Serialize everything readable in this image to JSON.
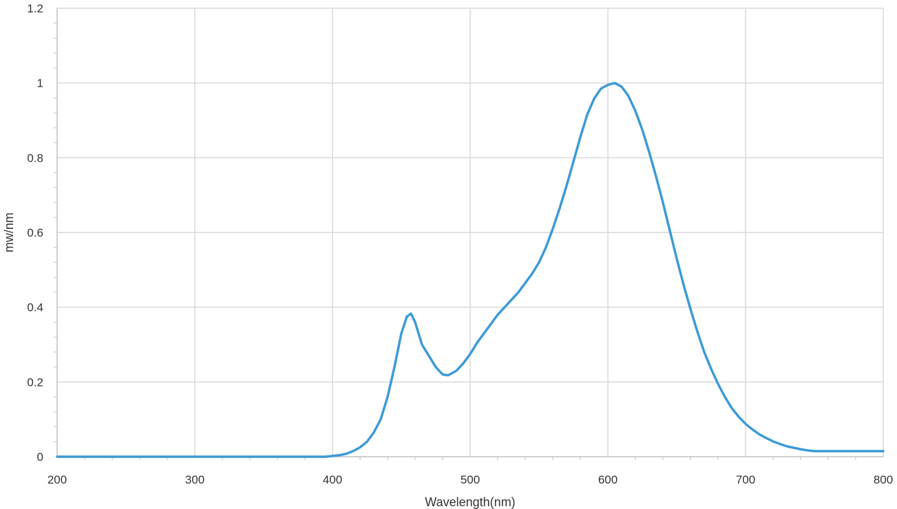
{
  "chart_data": {
    "type": "line",
    "title": "",
    "xlabel": "Wavelength(nm)",
    "ylabel": "mw/nm",
    "xlim": [
      200,
      800
    ],
    "ylim": [
      0,
      1.2
    ],
    "x_ticks": [
      200,
      300,
      400,
      500,
      600,
      700,
      800
    ],
    "x_tick_labels": [
      "200",
      "300",
      "400",
      "500",
      "600",
      "700",
      "800"
    ],
    "y_ticks": [
      0,
      0.2,
      0.4,
      0.6,
      0.8,
      1.0,
      1.2
    ],
    "y_tick_labels": [
      "0",
      "0.2",
      "0.4",
      "0.6",
      "0.8",
      "1",
      "1.2"
    ],
    "grid": true,
    "legend": "none",
    "series": [
      {
        "color": "#3d9ad6",
        "points": [
          [
            200,
            0
          ],
          [
            300,
            0
          ],
          [
            380,
            0
          ],
          [
            395,
            0
          ],
          [
            400,
            0.002
          ],
          [
            405,
            0.004
          ],
          [
            410,
            0.008
          ],
          [
            415,
            0.015
          ],
          [
            420,
            0.025
          ],
          [
            425,
            0.04
          ],
          [
            430,
            0.065
          ],
          [
            435,
            0.1
          ],
          [
            440,
            0.16
          ],
          [
            445,
            0.24
          ],
          [
            450,
            0.33
          ],
          [
            454,
            0.375
          ],
          [
            457,
            0.383
          ],
          [
            460,
            0.36
          ],
          [
            465,
            0.3
          ],
          [
            470,
            0.27
          ],
          [
            475,
            0.24
          ],
          [
            480,
            0.22
          ],
          [
            484,
            0.218
          ],
          [
            490,
            0.23
          ],
          [
            495,
            0.25
          ],
          [
            500,
            0.275
          ],
          [
            505,
            0.305
          ],
          [
            510,
            0.33
          ],
          [
            515,
            0.355
          ],
          [
            520,
            0.38
          ],
          [
            525,
            0.4
          ],
          [
            530,
            0.42
          ],
          [
            535,
            0.44
          ],
          [
            540,
            0.465
          ],
          [
            545,
            0.49
          ],
          [
            550,
            0.52
          ],
          [
            555,
            0.56
          ],
          [
            560,
            0.61
          ],
          [
            565,
            0.665
          ],
          [
            570,
            0.725
          ],
          [
            575,
            0.79
          ],
          [
            580,
            0.855
          ],
          [
            585,
            0.915
          ],
          [
            590,
            0.958
          ],
          [
            595,
            0.985
          ],
          [
            600,
            0.995
          ],
          [
            605,
            1.0
          ],
          [
            610,
            0.99
          ],
          [
            615,
            0.965
          ],
          [
            620,
            0.925
          ],
          [
            625,
            0.875
          ],
          [
            630,
            0.815
          ],
          [
            635,
            0.75
          ],
          [
            640,
            0.68
          ],
          [
            645,
            0.605
          ],
          [
            650,
            0.53
          ],
          [
            655,
            0.46
          ],
          [
            660,
            0.395
          ],
          [
            665,
            0.335
          ],
          [
            670,
            0.28
          ],
          [
            675,
            0.235
          ],
          [
            680,
            0.195
          ],
          [
            685,
            0.16
          ],
          [
            690,
            0.13
          ],
          [
            695,
            0.107
          ],
          [
            700,
            0.088
          ],
          [
            705,
            0.073
          ],
          [
            710,
            0.06
          ],
          [
            715,
            0.05
          ],
          [
            720,
            0.041
          ],
          [
            725,
            0.034
          ],
          [
            730,
            0.028
          ],
          [
            735,
            0.024
          ],
          [
            740,
            0.02
          ],
          [
            745,
            0.017
          ],
          [
            750,
            0.015
          ],
          [
            760,
            0.015
          ],
          [
            780,
            0.015
          ],
          [
            790,
            0.015
          ],
          [
            800,
            0.015
          ]
        ]
      }
    ]
  }
}
